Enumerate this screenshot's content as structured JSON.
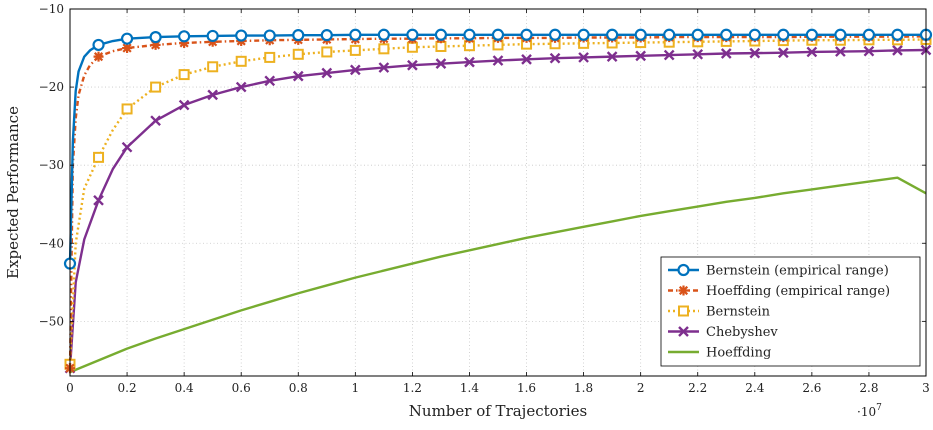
{
  "chart_data": {
    "type": "line",
    "title": "",
    "xlabel": "Number of Trajectories",
    "ylabel": "Expected Performance",
    "x_multiplier_label": "·10",
    "x_multiplier_exponent": "7",
    "xlim": [
      0,
      3
    ],
    "ylim": [
      -57,
      -10
    ],
    "grid": true,
    "legend_position": "bottom-right",
    "x_ticks": [
      "0",
      "0.2",
      "0.4",
      "0.6",
      "0.8",
      "1",
      "1.2",
      "1.4",
      "1.6",
      "1.8",
      "2",
      "2.2",
      "2.4",
      "2.6",
      "2.8",
      "3"
    ],
    "y_ticks": [
      "−10",
      "−20",
      "−30",
      "−40",
      "−50"
    ],
    "series": [
      {
        "name": "Bernstein (empirical range)",
        "color": "#0072BD",
        "dash": "",
        "marker": "circle",
        "x": [
          0,
          0.01,
          0.02,
          0.03,
          0.05,
          0.07,
          0.1,
          0.15,
          0.2,
          0.3,
          0.4,
          0.5,
          0.6,
          0.7,
          0.8,
          0.9,
          1.0,
          1.1,
          1.2,
          1.3,
          1.4,
          1.5,
          1.6,
          1.7,
          1.8,
          1.9,
          2.0,
          2.1,
          2.2,
          2.3,
          2.4,
          2.5,
          2.6,
          2.7,
          2.8,
          2.9,
          3.0
        ],
        "values": [
          -42.6,
          -27.0,
          -20.5,
          -18.0,
          -16.1,
          -15.3,
          -14.6,
          -14.1,
          -13.8,
          -13.6,
          -13.5,
          -13.45,
          -13.4,
          -13.4,
          -13.35,
          -13.35,
          -13.3,
          -13.3,
          -13.3,
          -13.3,
          -13.3,
          -13.3,
          -13.3,
          -13.3,
          -13.3,
          -13.3,
          -13.3,
          -13.3,
          -13.3,
          -13.3,
          -13.3,
          -13.3,
          -13.3,
          -13.3,
          -13.3,
          -13.3,
          -13.3
        ],
        "marker_x": [
          0,
          0.1,
          0.2,
          0.3,
          0.4,
          0.5,
          0.6,
          0.7,
          0.8,
          0.9,
          1.0,
          1.1,
          1.2,
          1.3,
          1.4,
          1.5,
          1.6,
          1.7,
          1.8,
          1.9,
          2.0,
          2.1,
          2.2,
          2.3,
          2.4,
          2.5,
          2.6,
          2.7,
          2.8,
          2.9,
          3.0
        ]
      },
      {
        "name": "Hoeffding (empirical range)",
        "color": "#D95319",
        "dash": "5,3,1.5,3",
        "marker": "asterisk",
        "x": [
          0,
          0.01,
          0.02,
          0.03,
          0.05,
          0.07,
          0.1,
          0.15,
          0.2,
          0.3,
          0.4,
          0.5,
          0.6,
          0.7,
          0.8,
          0.9,
          1.0,
          1.1,
          1.2,
          1.3,
          1.4,
          1.5,
          1.6,
          1.7,
          1.8,
          1.9,
          2.0,
          2.1,
          2.2,
          2.3,
          2.4,
          2.5,
          2.6,
          2.7,
          2.8,
          2.9,
          3.0
        ],
        "values": [
          -56.0,
          -30.0,
          -24.0,
          -21.0,
          -18.5,
          -17.2,
          -16.1,
          -15.4,
          -15.0,
          -14.6,
          -14.35,
          -14.2,
          -14.1,
          -14.0,
          -13.95,
          -13.9,
          -13.85,
          -13.8,
          -13.8,
          -13.75,
          -13.75,
          -13.7,
          -13.7,
          -13.7,
          -13.65,
          -13.65,
          -13.65,
          -13.6,
          -13.6,
          -13.6,
          -13.6,
          -13.6,
          -13.55,
          -13.55,
          -13.55,
          -13.55,
          -13.5
        ],
        "marker_x": [
          0,
          0.1,
          0.2,
          0.3,
          0.4,
          0.5,
          0.6,
          0.7,
          0.8,
          0.9,
          1.0,
          1.1,
          1.2,
          1.3,
          1.4,
          1.5,
          1.6,
          1.7,
          1.8,
          1.9,
          2.0,
          2.1,
          2.2,
          2.3,
          2.4,
          2.5,
          2.6,
          2.7,
          2.8,
          2.9,
          3.0
        ]
      },
      {
        "name": "Bernstein",
        "color": "#EDB120",
        "dash": "2,3",
        "marker": "square",
        "x": [
          0,
          0.02,
          0.05,
          0.1,
          0.15,
          0.2,
          0.3,
          0.4,
          0.5,
          0.6,
          0.7,
          0.8,
          0.9,
          1.0,
          1.1,
          1.2,
          1.3,
          1.4,
          1.5,
          1.6,
          1.7,
          1.8,
          1.9,
          2.0,
          2.1,
          2.2,
          2.3,
          2.4,
          2.5,
          2.6,
          2.7,
          2.8,
          2.9,
          3.0
        ],
        "values": [
          -55.5,
          -40.0,
          -33.0,
          -29.0,
          -25.5,
          -22.8,
          -20.0,
          -18.4,
          -17.4,
          -16.7,
          -16.2,
          -15.8,
          -15.5,
          -15.3,
          -15.1,
          -14.9,
          -14.8,
          -14.7,
          -14.6,
          -14.5,
          -14.45,
          -14.4,
          -14.35,
          -14.3,
          -14.25,
          -14.2,
          -14.15,
          -14.1,
          -14.05,
          -14.0,
          -14.0,
          -13.95,
          -13.95,
          -13.9
        ],
        "marker_x": [
          0,
          0.1,
          0.2,
          0.3,
          0.4,
          0.5,
          0.6,
          0.7,
          0.8,
          0.9,
          1.0,
          1.1,
          1.2,
          1.3,
          1.4,
          1.5,
          1.6,
          1.7,
          1.8,
          1.9,
          2.0,
          2.1,
          2.2,
          2.3,
          2.4,
          2.5,
          2.6,
          2.7,
          2.8,
          2.9,
          3.0
        ]
      },
      {
        "name": "Chebyshev",
        "color": "#7E2F8E",
        "dash": "",
        "marker": "cross",
        "x": [
          0,
          0.02,
          0.05,
          0.1,
          0.15,
          0.2,
          0.3,
          0.4,
          0.5,
          0.6,
          0.7,
          0.8,
          0.9,
          1.0,
          1.1,
          1.2,
          1.3,
          1.4,
          1.5,
          1.6,
          1.7,
          1.8,
          1.9,
          2.0,
          2.1,
          2.2,
          2.3,
          2.4,
          2.5,
          2.6,
          2.7,
          2.8,
          2.9,
          3.0
        ],
        "values": [
          -56.0,
          -45.0,
          -39.5,
          -34.5,
          -30.5,
          -27.7,
          -24.3,
          -22.3,
          -21.0,
          -20.0,
          -19.2,
          -18.6,
          -18.2,
          -17.8,
          -17.5,
          -17.2,
          -17.0,
          -16.8,
          -16.6,
          -16.45,
          -16.3,
          -16.2,
          -16.1,
          -16.0,
          -15.9,
          -15.8,
          -15.7,
          -15.65,
          -15.6,
          -15.5,
          -15.45,
          -15.4,
          -15.3,
          -15.25
        ],
        "marker_x": [
          0,
          0.1,
          0.2,
          0.3,
          0.4,
          0.5,
          0.6,
          0.7,
          0.8,
          0.9,
          1.0,
          1.1,
          1.2,
          1.3,
          1.4,
          1.5,
          1.6,
          1.7,
          1.8,
          1.9,
          2.0,
          2.1,
          2.2,
          2.3,
          2.4,
          2.5,
          2.6,
          2.7,
          2.8,
          2.9,
          3.0
        ]
      },
      {
        "name": "Hoeffding",
        "color": "#77AC30",
        "dash": "",
        "marker": "none",
        "x": [
          0,
          0.1,
          0.2,
          0.3,
          0.4,
          0.5,
          0.6,
          0.7,
          0.8,
          0.9,
          1.0,
          1.1,
          1.2,
          1.3,
          1.4,
          1.5,
          1.6,
          1.7,
          1.8,
          1.9,
          2.0,
          2.1,
          2.2,
          2.3,
          2.4,
          2.5,
          2.6,
          2.7,
          2.8,
          2.9,
          3.0
        ],
        "values": [
          -56.5,
          -55.0,
          -53.5,
          -52.2,
          -51.0,
          -49.8,
          -48.6,
          -47.5,
          -46.4,
          -45.4,
          -44.4,
          -43.5,
          -42.6,
          -41.7,
          -40.9,
          -40.1,
          -39.3,
          -38.6,
          -37.9,
          -37.2,
          -36.5,
          -35.9,
          -35.3,
          -34.7,
          -34.2,
          -33.6,
          -33.1,
          -32.6,
          -32.1,
          -31.6,
          -33.6
        ]
      }
    ]
  }
}
